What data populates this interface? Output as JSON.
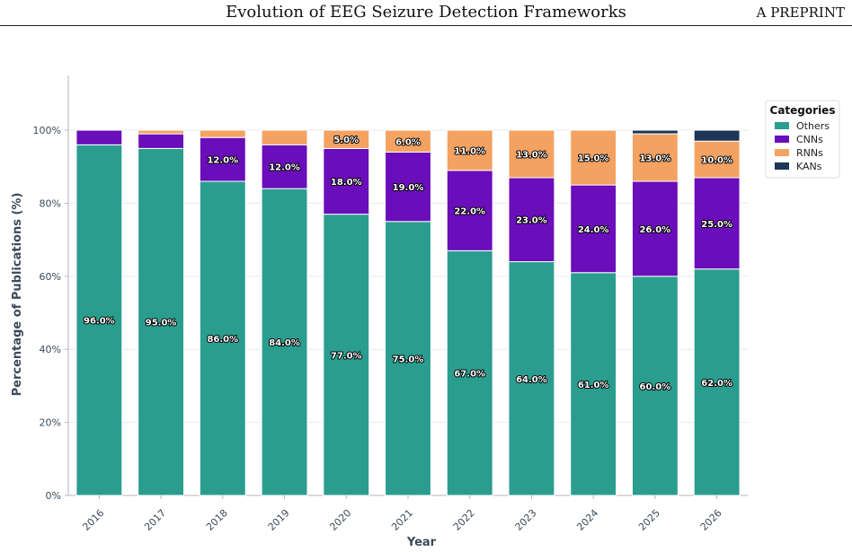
{
  "header": {
    "title": "Evolution of EEG Seizure Detection Frameworks",
    "tag": "A PREPRINT"
  },
  "chart_data": {
    "type": "bar",
    "stacked": true,
    "categories": [
      "2016",
      "2017",
      "2018",
      "2019",
      "2020",
      "2021",
      "2022",
      "2023",
      "2024",
      "2025",
      "2026"
    ],
    "series": [
      {
        "name": "Others",
        "color": "#2a9d8f",
        "values": [
          96,
          95,
          86,
          84,
          77,
          75,
          67,
          64,
          61,
          60,
          62
        ]
      },
      {
        "name": "CNNs",
        "color": "#6a0dba",
        "values": [
          4,
          4,
          12,
          12,
          18,
          19,
          22,
          23,
          24,
          26,
          25
        ]
      },
      {
        "name": "RNNs",
        "color": "#f4a261",
        "values": [
          0,
          1,
          2,
          4,
          5,
          6,
          11,
          13,
          15,
          13,
          10
        ]
      },
      {
        "name": "KANs",
        "color": "#1d3557",
        "values": [
          0,
          0,
          0,
          0,
          0,
          0,
          0,
          0,
          0,
          1,
          3
        ]
      }
    ],
    "data_labels": [
      {
        "series": "Others",
        "category": "2016",
        "text": "96.0%"
      },
      {
        "series": "Others",
        "category": "2017",
        "text": "95.0%"
      },
      {
        "series": "Others",
        "category": "2018",
        "text": "86.0%"
      },
      {
        "series": "Others",
        "category": "2019",
        "text": "84.0%"
      },
      {
        "series": "Others",
        "category": "2020",
        "text": "77.0%"
      },
      {
        "series": "Others",
        "category": "2021",
        "text": "75.0%"
      },
      {
        "series": "Others",
        "category": "2022",
        "text": "67.0%"
      },
      {
        "series": "Others",
        "category": "2023",
        "text": "64.0%"
      },
      {
        "series": "Others",
        "category": "2024",
        "text": "61.0%"
      },
      {
        "series": "Others",
        "category": "2025",
        "text": "60.0%"
      },
      {
        "series": "Others",
        "category": "2026",
        "text": "62.0%"
      },
      {
        "series": "CNNs",
        "category": "2018",
        "text": "12.0%"
      },
      {
        "series": "CNNs",
        "category": "2019",
        "text": "12.0%"
      },
      {
        "series": "CNNs",
        "category": "2020",
        "text": "18.0%"
      },
      {
        "series": "CNNs",
        "category": "2021",
        "text": "19.0%"
      },
      {
        "series": "CNNs",
        "category": "2022",
        "text": "22.0%"
      },
      {
        "series": "CNNs",
        "category": "2023",
        "text": "23.0%"
      },
      {
        "series": "CNNs",
        "category": "2024",
        "text": "24.0%"
      },
      {
        "series": "CNNs",
        "category": "2025",
        "text": "26.0%"
      },
      {
        "series": "CNNs",
        "category": "2026",
        "text": "25.0%"
      },
      {
        "series": "RNNs",
        "category": "2020",
        "text": "5.0%"
      },
      {
        "series": "RNNs",
        "category": "2021",
        "text": "6.0%"
      },
      {
        "series": "RNNs",
        "category": "2022",
        "text": "11.0%"
      },
      {
        "series": "RNNs",
        "category": "2023",
        "text": "13.0%"
      },
      {
        "series": "RNNs",
        "category": "2024",
        "text": "15.0%"
      },
      {
        "series": "RNNs",
        "category": "2025",
        "text": "13.0%"
      },
      {
        "series": "RNNs",
        "category": "2026",
        "text": "10.0%"
      }
    ],
    "xlabel": "Year",
    "ylabel": "Percentage of Publications (%)",
    "ylim": [
      0,
      115
    ],
    "yticks": [
      0,
      20,
      40,
      60,
      80,
      100
    ],
    "ytick_labels": [
      "0%",
      "20%",
      "40%",
      "60%",
      "80%",
      "100%"
    ],
    "grid": true,
    "legend": {
      "title": "Categories",
      "placement": "right"
    }
  }
}
